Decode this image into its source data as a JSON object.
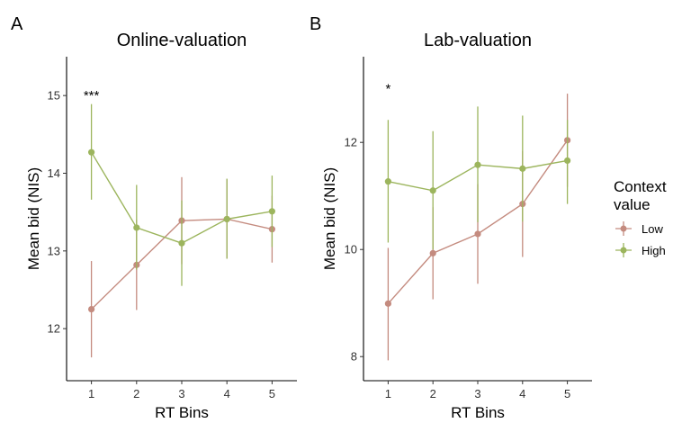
{
  "legend": {
    "title_line1": "Context",
    "title_line2": "value",
    "items": [
      {
        "label": "Low",
        "color": "#c48b7f"
      },
      {
        "label": "High",
        "color": "#9cb55d"
      }
    ]
  },
  "chart_data": [
    {
      "type": "line",
      "panel_letter": "A",
      "title": "Online-valuation",
      "xlabel": "RT Bins",
      "ylabel": "Mean bid (NIS)",
      "x": [
        1,
        2,
        3,
        4,
        5
      ],
      "x_ticks": [
        "1",
        "2",
        "3",
        "4",
        "5"
      ],
      "y_ticks": [
        12,
        13,
        14,
        15
      ],
      "xlim": [
        0.45,
        5.55
      ],
      "ylim": [
        11.33,
        15.5
      ],
      "annotation": {
        "text": "***",
        "x": 1,
        "y": 15.0
      },
      "series": [
        {
          "name": "Low",
          "color": "#c48b7f",
          "values": [
            12.25,
            12.82,
            13.39,
            13.41,
            13.28
          ],
          "lower": [
            11.63,
            12.24,
            12.83,
            12.9,
            12.85
          ],
          "upper": [
            12.87,
            13.4,
            13.95,
            13.92,
            13.71
          ]
        },
        {
          "name": "High",
          "color": "#9cb55d",
          "values": [
            14.27,
            13.3,
            13.1,
            13.41,
            13.51
          ],
          "lower": [
            13.66,
            12.76,
            12.55,
            12.9,
            13.05
          ],
          "upper": [
            14.89,
            13.85,
            13.65,
            13.93,
            13.97
          ]
        }
      ]
    },
    {
      "type": "line",
      "panel_letter": "B",
      "title": "Lab-valuation",
      "xlabel": "RT Bins",
      "ylabel": "Mean bid (NIS)",
      "x": [
        1,
        2,
        3,
        4,
        5
      ],
      "x_ticks": [
        "1",
        "2",
        "3",
        "4",
        "5"
      ],
      "y_ticks": [
        8,
        10,
        12
      ],
      "xlim": [
        0.45,
        5.55
      ],
      "ylim": [
        7.55,
        13.6
      ],
      "annotation": {
        "text": "*",
        "x": 1,
        "y": 13.0
      },
      "series": [
        {
          "name": "Low",
          "color": "#c48b7f",
          "values": [
            8.99,
            9.93,
            10.29,
            10.85,
            12.04
          ],
          "lower": [
            7.93,
            9.07,
            9.36,
            9.86,
            11.17
          ],
          "upper": [
            10.03,
            10.79,
            11.22,
            11.84,
            12.91
          ]
        },
        {
          "name": "High",
          "color": "#9cb55d",
          "values": [
            11.27,
            11.1,
            11.58,
            11.51,
            11.66
          ],
          "lower": [
            10.13,
            10.0,
            10.51,
            10.52,
            10.85
          ],
          "upper": [
            12.42,
            12.21,
            12.67,
            12.5,
            12.42
          ]
        }
      ]
    }
  ]
}
